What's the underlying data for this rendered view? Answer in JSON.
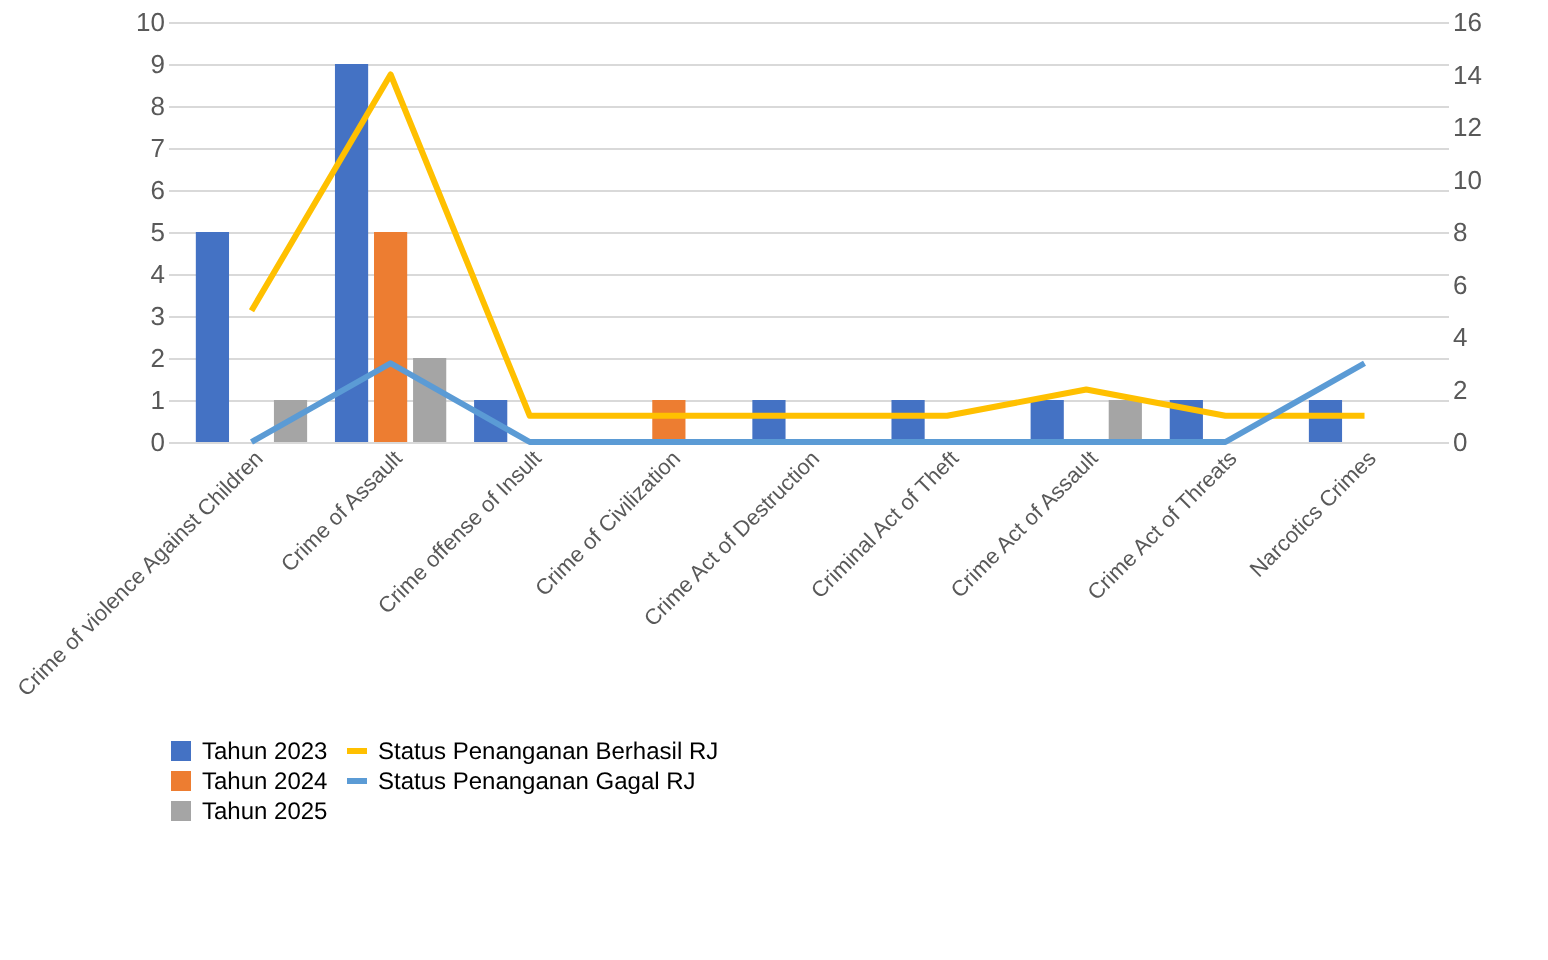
{
  "chart_data": {
    "type": "bar",
    "categories": [
      "Crime of violence Against Children",
      "Crime of Assault",
      "Crime offense of Insult",
      "Crime of Civilization",
      "Crime Act of Destruction",
      "Criminal Act of Theft",
      "Crime Act of Assault",
      "Crime Act of Threats",
      "Narcotics Crimes"
    ],
    "series": [
      {
        "name": "Tahun 2023",
        "color": "#4472c4",
        "values": [
          5,
          9,
          1,
          0,
          1,
          1,
          1,
          1,
          1
        ]
      },
      {
        "name": "Tahun 2024",
        "color": "#ed7d31",
        "values": [
          0,
          5,
          0,
          1,
          0,
          0,
          0,
          0,
          0
        ]
      },
      {
        "name": "Tahun 2025",
        "color": "#a5a5a5",
        "values": [
          1,
          2,
          0,
          0,
          0,
          0,
          1,
          0,
          0
        ]
      },
      {
        "name": "Status Penanganan Berhasil RJ",
        "color": "#ffc000",
        "type": "line",
        "axis": "y2",
        "values": [
          5,
          14,
          1,
          1,
          1,
          1,
          2,
          1,
          1
        ]
      },
      {
        "name": "Status Penanganan Gagal RJ",
        "color": "#5b9bd5",
        "type": "line",
        "axis": "y2",
        "values": [
          0,
          3,
          0,
          0,
          0,
          0,
          0,
          0,
          3
        ]
      }
    ],
    "ylim": [
      0,
      10
    ],
    "yticks": [
      0,
      1,
      2,
      3,
      4,
      5,
      6,
      7,
      8,
      9,
      10
    ],
    "y2lim": [
      0,
      16
    ],
    "y2ticks": [
      0,
      2,
      4,
      6,
      8,
      10,
      12,
      14,
      16
    ],
    "grid": "y",
    "legend": "bottom"
  }
}
